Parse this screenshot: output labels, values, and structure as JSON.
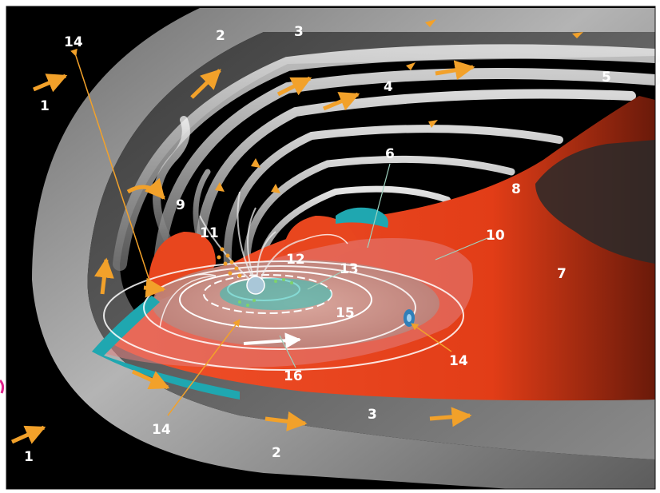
{
  "colors": {
    "space": "#000000",
    "sheath": "#9a9a9a",
    "plasma_sheet": "#e8461e",
    "plasmasphere": "#c9a39b",
    "boundary_layer": "#1fa7b0",
    "arrow": "#f2a12a",
    "label": "#ffffff"
  },
  "labels": [
    {
      "id": "1a",
      "text": "1"
    },
    {
      "id": "1b",
      "text": "1"
    },
    {
      "id": "2a",
      "text": "2"
    },
    {
      "id": "2b",
      "text": "2"
    },
    {
      "id": "3a",
      "text": "3"
    },
    {
      "id": "3b",
      "text": "3"
    },
    {
      "id": "4",
      "text": "4"
    },
    {
      "id": "5",
      "text": "5"
    },
    {
      "id": "6",
      "text": "6"
    },
    {
      "id": "7",
      "text": "7"
    },
    {
      "id": "8",
      "text": "8"
    },
    {
      "id": "9",
      "text": "9"
    },
    {
      "id": "10",
      "text": "10"
    },
    {
      "id": "11",
      "text": "11"
    },
    {
      "id": "12",
      "text": "12"
    },
    {
      "id": "13",
      "text": "13"
    },
    {
      "id": "14a",
      "text": "14"
    },
    {
      "id": "14b",
      "text": "14"
    },
    {
      "id": "14c",
      "text": "14"
    },
    {
      "id": "15",
      "text": "15"
    },
    {
      "id": "16",
      "text": "16"
    }
  ]
}
